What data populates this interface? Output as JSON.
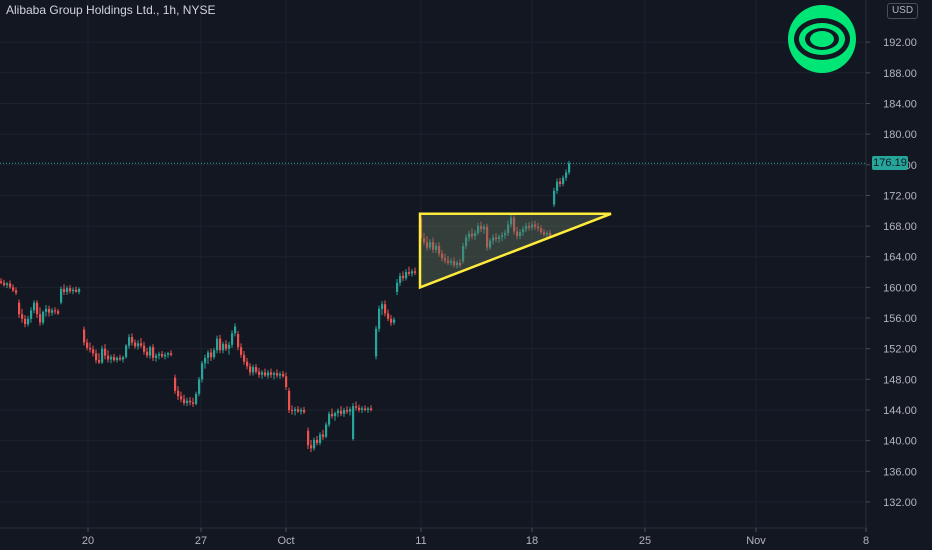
{
  "symbol_title": "Alibaba Group Holdings Ltd., 1h, NYSE",
  "currency": "USD",
  "last_price_label": "176.19",
  "colors": {
    "background": "#131722",
    "up": "#26a69a",
    "down": "#ef5350",
    "pattern_line": "#ffeb3b",
    "pattern_fill": "#5d6f5c",
    "logo": "#00e676",
    "price_label_bg": "#26a69a",
    "axis_text": "#b2b5be",
    "grid": "#1e222d"
  },
  "logo_icon": "target-rings-icon",
  "chart_data": {
    "type": "candlestick",
    "title": "",
    "xlabel": "",
    "ylabel": "",
    "ylim": [
      128.6,
      197.5
    ],
    "xlim": [
      0,
      932
    ],
    "grid": true,
    "last_price": 176.19,
    "y_ticks": [
      {
        "label": "192.00",
        "value": 192
      },
      {
        "label": "188.00",
        "value": 188
      },
      {
        "label": "184.00",
        "value": 184
      },
      {
        "label": "180.00",
        "value": 180
      },
      {
        "label": "176.00",
        "value": 176
      },
      {
        "label": "172.00",
        "value": 172
      },
      {
        "label": "168.00",
        "value": 168
      },
      {
        "label": "164.00",
        "value": 164
      },
      {
        "label": "160.00",
        "value": 160
      },
      {
        "label": "156.00",
        "value": 156
      },
      {
        "label": "152.00",
        "value": 152
      },
      {
        "label": "148.00",
        "value": 148
      },
      {
        "label": "144.00",
        "value": 144
      },
      {
        "label": "140.00",
        "value": 140
      },
      {
        "label": "136.00",
        "value": 136
      },
      {
        "label": "132.00",
        "value": 132
      }
    ],
    "x_ticks": [
      {
        "label": "20",
        "x": 88
      },
      {
        "label": "27",
        "x": 201
      },
      {
        "label": "Oct",
        "x": 286
      },
      {
        "label": "11",
        "x": 421
      },
      {
        "label": "18",
        "x": 532
      },
      {
        "label": "25",
        "x": 645
      },
      {
        "label": "Nov",
        "x": 756
      },
      {
        "label": "8",
        "x": 866
      }
    ],
    "candles": [
      [
        1,
        160.8,
        161.2,
        160.4,
        160.6
      ],
      [
        4,
        160.6,
        161.0,
        160.1,
        160.3
      ],
      [
        7,
        160.3,
        160.7,
        159.9,
        160.5
      ],
      [
        10,
        160.5,
        160.9,
        159.8,
        160.0
      ],
      [
        13,
        160.0,
        160.4,
        159.4,
        159.6
      ],
      [
        16,
        159.6,
        160.0,
        159.0,
        159.3
      ],
      [
        19,
        158.0,
        158.4,
        156.0,
        156.5
      ],
      [
        22,
        156.5,
        157.2,
        155.4,
        155.9
      ],
      [
        25,
        155.9,
        156.4,
        154.8,
        155.2
      ],
      [
        28,
        155.2,
        156.3,
        154.9,
        155.9
      ],
      [
        31,
        155.9,
        157.4,
        155.4,
        157.0
      ],
      [
        34,
        157.0,
        158.3,
        156.6,
        158.0
      ],
      [
        37,
        158.0,
        158.3,
        156.0,
        156.5
      ],
      [
        40,
        156.5,
        157.4,
        155.0,
        155.4
      ],
      [
        43,
        155.4,
        157.0,
        155.1,
        156.8
      ],
      [
        46,
        156.8,
        157.7,
        156.2,
        157.2
      ],
      [
        49,
        157.2,
        157.6,
        156.2,
        156.7
      ],
      [
        52,
        156.7,
        157.3,
        156.3,
        157.0
      ],
      [
        55,
        157.0,
        157.4,
        156.5,
        156.9
      ],
      [
        58,
        156.9,
        157.2,
        156.4,
        156.6
      ],
      [
        61,
        158.0,
        160.1,
        157.8,
        159.8
      ],
      [
        64,
        159.8,
        160.4,
        159.0,
        159.4
      ],
      [
        67,
        159.4,
        160.2,
        159.0,
        159.9
      ],
      [
        70,
        159.9,
        160.3,
        159.2,
        159.5
      ],
      [
        73,
        159.5,
        160.0,
        159.1,
        159.7
      ],
      [
        76,
        159.7,
        160.1,
        159.3,
        159.4
      ],
      [
        79,
        159.4,
        160.0,
        159.1,
        159.8
      ],
      [
        84,
        154.5,
        154.9,
        152.4,
        152.8
      ],
      [
        87,
        152.8,
        153.3,
        151.8,
        152.1
      ],
      [
        90,
        152.1,
        152.8,
        151.5,
        151.9
      ],
      [
        93,
        151.9,
        152.4,
        151.0,
        151.4
      ],
      [
        96,
        151.4,
        151.9,
        150.1,
        150.5
      ],
      [
        99,
        150.5,
        151.4,
        150.0,
        150.2
      ],
      [
        102,
        150.2,
        152.4,
        150.0,
        152.0
      ],
      [
        105,
        152.0,
        152.6,
        150.6,
        151.1
      ],
      [
        108,
        151.1,
        151.8,
        150.2,
        150.6
      ],
      [
        111,
        150.6,
        151.2,
        150.1,
        150.9
      ],
      [
        114,
        150.9,
        151.3,
        150.3,
        150.5
      ],
      [
        117,
        150.5,
        151.0,
        150.2,
        150.8
      ],
      [
        120,
        150.8,
        151.2,
        150.4,
        150.6
      ],
      [
        123,
        150.6,
        151.1,
        150.2,
        150.9
      ],
      [
        126,
        150.9,
        152.6,
        150.7,
        152.4
      ],
      [
        129,
        152.4,
        153.9,
        152.0,
        153.5
      ],
      [
        132,
        153.5,
        154.0,
        152.4,
        152.8
      ],
      [
        135,
        152.8,
        153.2,
        152.0,
        152.3
      ],
      [
        138,
        152.3,
        153.1,
        151.9,
        152.7
      ],
      [
        141,
        152.7,
        153.4,
        152.1,
        152.4
      ],
      [
        144,
        152.4,
        152.9,
        151.2,
        151.6
      ],
      [
        147,
        151.6,
        152.1,
        150.8,
        151.1
      ],
      [
        150,
        151.1,
        152.4,
        150.7,
        152.2
      ],
      [
        153,
        152.2,
        152.6,
        150.4,
        150.8
      ],
      [
        156,
        150.8,
        151.4,
        150.3,
        151.1
      ],
      [
        159,
        151.1,
        151.6,
        150.6,
        151.3
      ],
      [
        162,
        151.3,
        151.7,
        150.8,
        151.0
      ],
      [
        165,
        151.0,
        151.5,
        150.6,
        151.2
      ],
      [
        168,
        151.2,
        151.6,
        150.8,
        151.4
      ],
      [
        171,
        151.4,
        151.8,
        151.0,
        151.2
      ],
      [
        175,
        148.2,
        148.6,
        146.1,
        146.5
      ],
      [
        178,
        146.5,
        147.1,
        145.3,
        145.8
      ],
      [
        181,
        145.8,
        146.4,
        145.0,
        145.4
      ],
      [
        184,
        145.4,
        146.0,
        144.6,
        144.9
      ],
      [
        187,
        144.9,
        145.6,
        144.5,
        145.2
      ],
      [
        190,
        145.2,
        145.7,
        144.6,
        145.0
      ],
      [
        193,
        145.0,
        145.6,
        144.4,
        144.8
      ],
      [
        196,
        144.8,
        146.4,
        144.6,
        146.1
      ],
      [
        199,
        146.1,
        148.3,
        145.8,
        148.0
      ],
      [
        202,
        148.0,
        150.4,
        147.6,
        150.1
      ],
      [
        205,
        150.1,
        151.2,
        149.4,
        150.8
      ],
      [
        208,
        150.8,
        151.8,
        150.0,
        151.5
      ],
      [
        211,
        151.5,
        152.0,
        150.4,
        150.9
      ],
      [
        214,
        150.9,
        152.1,
        150.6,
        151.8
      ],
      [
        217,
        151.8,
        153.7,
        151.4,
        153.3
      ],
      [
        220,
        153.3,
        153.8,
        151.4,
        151.8
      ],
      [
        223,
        151.8,
        152.9,
        151.4,
        152.6
      ],
      [
        226,
        152.6,
        153.1,
        151.7,
        152.0
      ],
      [
        229,
        152.0,
        152.9,
        151.2,
        152.5
      ],
      [
        232,
        152.5,
        154.4,
        152.1,
        154.0
      ],
      [
        235,
        154.0,
        155.3,
        153.6,
        154.9
      ],
      [
        238,
        153.9,
        154.3,
        151.8,
        152.2
      ],
      [
        241,
        152.2,
        152.7,
        150.8,
        151.2
      ],
      [
        244,
        151.2,
        151.7,
        149.9,
        150.3
      ],
      [
        247,
        150.3,
        150.8,
        149.3,
        149.7
      ],
      [
        250,
        149.7,
        150.1,
        148.5,
        148.9
      ],
      [
        253,
        148.9,
        149.9,
        148.5,
        149.6
      ],
      [
        256,
        149.6,
        150.0,
        148.7,
        149.0
      ],
      [
        259,
        149.0,
        149.5,
        148.2,
        148.6
      ],
      [
        262,
        148.6,
        149.2,
        148.1,
        148.9
      ],
      [
        265,
        148.9,
        149.4,
        148.3,
        148.5
      ],
      [
        268,
        148.5,
        149.2,
        148.1,
        148.9
      ],
      [
        271,
        148.9,
        149.4,
        148.2,
        148.6
      ],
      [
        274,
        148.6,
        149.0,
        148.0,
        148.8
      ],
      [
        277,
        148.8,
        149.3,
        148.2,
        148.5
      ],
      [
        280,
        148.5,
        149.0,
        148.1,
        148.7
      ],
      [
        283,
        148.7,
        149.1,
        148.2,
        148.4
      ],
      [
        286,
        148.4,
        148.9,
        146.6,
        147.0
      ],
      [
        289,
        146.5,
        146.9,
        143.6,
        144.0
      ],
      [
        292,
        144.0,
        144.6,
        143.4,
        143.9
      ],
      [
        295,
        143.9,
        144.4,
        143.3,
        144.1
      ],
      [
        298,
        144.1,
        144.5,
        143.6,
        143.8
      ],
      [
        301,
        143.8,
        144.3,
        143.4,
        144.0
      ],
      [
        304,
        144.0,
        144.4,
        143.5,
        143.7
      ],
      [
        308,
        141.3,
        141.7,
        138.9,
        139.4
      ],
      [
        311,
        139.4,
        140.1,
        138.5,
        139.0
      ],
      [
        314,
        139.0,
        140.4,
        138.7,
        140.1
      ],
      [
        317,
        140.1,
        140.6,
        139.4,
        139.7
      ],
      [
        320,
        139.7,
        141.1,
        139.4,
        140.8
      ],
      [
        323,
        140.8,
        141.4,
        140.1,
        140.5
      ],
      [
        326,
        140.5,
        142.4,
        140.3,
        142.1
      ],
      [
        329,
        142.1,
        143.8,
        141.8,
        143.5
      ],
      [
        332,
        143.5,
        144.2,
        142.9,
        143.2
      ],
      [
        335,
        143.2,
        143.8,
        142.6,
        143.6
      ],
      [
        338,
        143.6,
        144.2,
        143.1,
        143.9
      ],
      [
        341,
        143.9,
        144.5,
        143.2,
        143.5
      ],
      [
        344,
        143.5,
        144.3,
        143.1,
        144.0
      ],
      [
        347,
        144.0,
        144.5,
        143.5,
        143.8
      ],
      [
        350,
        143.8,
        144.4,
        143.3,
        144.1
      ],
      [
        353,
        140.2,
        144.9,
        140.0,
        144.5
      ],
      [
        356,
        144.5,
        145.1,
        143.9,
        144.3
      ],
      [
        359,
        144.3,
        144.7,
        143.7,
        144.0
      ],
      [
        362,
        144.0,
        144.5,
        143.6,
        144.2
      ],
      [
        365,
        144.2,
        144.6,
        143.8,
        144.0
      ],
      [
        368,
        144.0,
        144.4,
        143.6,
        144.2
      ],
      [
        371,
        144.2,
        144.6,
        143.8,
        144.0
      ],
      [
        376,
        151.0,
        155.0,
        150.6,
        154.6
      ],
      [
        379,
        154.6,
        157.6,
        154.2,
        157.2
      ],
      [
        382,
        157.2,
        158.2,
        156.4,
        157.8
      ],
      [
        385,
        157.8,
        158.3,
        156.2,
        156.6
      ],
      [
        388,
        156.6,
        157.1,
        155.6,
        155.9
      ],
      [
        391,
        155.9,
        156.4,
        155.0,
        155.4
      ],
      [
        394,
        155.4,
        156.1,
        155.1,
        155.8
      ],
      [
        397,
        159.4,
        161.1,
        159.0,
        160.6
      ],
      [
        400,
        160.6,
        161.9,
        160.2,
        161.5
      ],
      [
        403,
        161.5,
        162.1,
        160.8,
        161.2
      ],
      [
        406,
        161.2,
        162.4,
        160.9,
        162.0
      ],
      [
        409,
        162.0,
        162.7,
        161.5,
        161.8
      ],
      [
        412,
        161.8,
        162.4,
        161.4,
        162.1
      ],
      [
        415,
        162.1,
        162.6,
        161.6,
        161.9
      ],
      [
        421,
        169.0,
        169.3,
        166.0,
        166.4
      ],
      [
        424,
        166.4,
        167.1,
        165.5,
        165.9
      ],
      [
        427,
        165.9,
        166.7,
        164.8,
        165.2
      ],
      [
        430,
        165.2,
        166.3,
        164.9,
        165.9
      ],
      [
        433,
        165.9,
        166.5,
        164.5,
        164.9
      ],
      [
        436,
        164.9,
        165.8,
        164.5,
        165.4
      ],
      [
        439,
        165.4,
        165.9,
        164.0,
        164.4
      ],
      [
        442,
        164.4,
        164.9,
        163.4,
        163.8
      ],
      [
        445,
        163.8,
        164.4,
        163.1,
        163.5
      ],
      [
        448,
        163.5,
        164.1,
        162.9,
        163.2
      ],
      [
        451,
        163.2,
        163.8,
        162.8,
        163.4
      ],
      [
        454,
        163.4,
        163.9,
        162.6,
        162.9
      ],
      [
        457,
        162.9,
        163.5,
        162.5,
        163.2
      ],
      [
        460,
        163.2,
        163.7,
        162.6,
        162.9
      ],
      [
        463,
        163.4,
        165.8,
        163.1,
        165.4
      ],
      [
        466,
        165.4,
        166.9,
        165.0,
        166.5
      ],
      [
        469,
        166.5,
        167.4,
        166.0,
        167.0
      ],
      [
        472,
        167.0,
        167.7,
        166.3,
        166.7
      ],
      [
        475,
        166.7,
        167.5,
        166.2,
        167.1
      ],
      [
        478,
        167.1,
        168.4,
        166.8,
        168.0
      ],
      [
        481,
        168.0,
        168.6,
        167.2,
        167.6
      ],
      [
        484,
        167.6,
        168.2,
        167.0,
        167.9
      ],
      [
        487,
        167.9,
        168.3,
        164.8,
        165.2
      ],
      [
        490,
        165.2,
        166.4,
        164.9,
        166.1
      ],
      [
        493,
        166.1,
        166.9,
        165.6,
        166.5
      ],
      [
        496,
        166.5,
        167.1,
        165.9,
        166.3
      ],
      [
        499,
        166.3,
        166.9,
        165.8,
        166.6
      ],
      [
        502,
        166.6,
        167.2,
        166.0,
        166.8
      ],
      [
        505,
        166.8,
        167.5,
        166.3,
        167.1
      ],
      [
        508,
        167.1,
        168.7,
        166.7,
        168.2
      ],
      [
        511,
        168.2,
        169.7,
        167.8,
        169.1
      ],
      [
        514,
        169.1,
        169.4,
        166.9,
        167.3
      ],
      [
        517,
        167.3,
        167.9,
        166.3,
        166.7
      ],
      [
        520,
        166.7,
        167.6,
        166.3,
        167.2
      ],
      [
        523,
        167.2,
        168.0,
        166.7,
        167.6
      ],
      [
        526,
        167.6,
        168.4,
        167.2,
        168.0
      ],
      [
        529,
        168.0,
        168.5,
        167.4,
        167.8
      ],
      [
        532,
        167.8,
        168.6,
        167.4,
        168.2
      ],
      [
        535,
        168.2,
        168.7,
        167.5,
        167.9
      ],
      [
        538,
        167.9,
        168.4,
        167.3,
        167.7
      ],
      [
        541,
        167.7,
        168.1,
        166.9,
        167.2
      ],
      [
        544,
        167.2,
        167.6,
        166.6,
        166.9
      ],
      [
        547,
        166.9,
        167.4,
        166.4,
        167.1
      ],
      [
        550,
        167.1,
        167.5,
        166.5,
        166.7
      ],
      [
        554,
        170.8,
        173.0,
        170.5,
        172.6
      ],
      [
        557,
        172.6,
        174.2,
        172.2,
        173.8
      ],
      [
        560,
        173.8,
        174.3,
        173.1,
        173.5
      ],
      [
        563,
        173.5,
        174.6,
        173.2,
        174.3
      ],
      [
        566,
        174.3,
        175.4,
        173.9,
        175.0
      ],
      [
        569,
        175.0,
        176.5,
        174.7,
        176.19
      ]
    ],
    "annotations": {
      "ascending_triangle": [
        [
          420,
          169.6
        ],
        [
          611,
          169.6
        ],
        [
          420,
          160.0
        ]
      ]
    }
  }
}
